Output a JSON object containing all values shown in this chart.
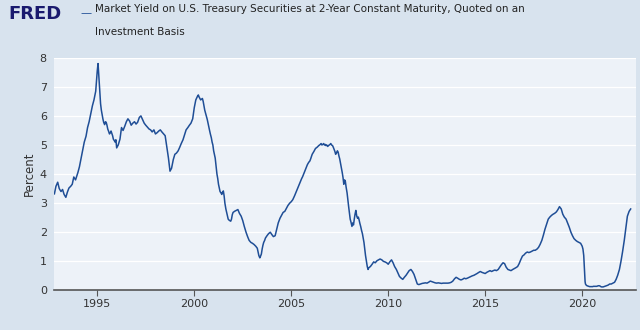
{
  "title_line1": "Market Yield on U.S. Treasury Securities at 2-Year Constant Maturity, Quoted on an",
  "title_line2": "Investment Basis",
  "ylabel": "Percent",
  "xlim_start": 1992.79,
  "xlim_end": 2022.75,
  "ylim": [
    0,
    8
  ],
  "yticks": [
    0,
    1,
    2,
    3,
    4,
    5,
    6,
    7,
    8
  ],
  "xticks": [
    1995,
    2000,
    2005,
    2010,
    2015,
    2020
  ],
  "line_color": "#1f4e96",
  "background_color": "#d8e3ee",
  "plot_bg_color": "#edf2f8",
  "grid_color": "#ffffff",
  "series": [
    [
      1992.79,
      3.32
    ],
    [
      1992.87,
      3.58
    ],
    [
      1992.96,
      3.72
    ],
    [
      1993.04,
      3.5
    ],
    [
      1993.13,
      3.4
    ],
    [
      1993.21,
      3.47
    ],
    [
      1993.29,
      3.3
    ],
    [
      1993.38,
      3.2
    ],
    [
      1993.46,
      3.38
    ],
    [
      1993.54,
      3.52
    ],
    [
      1993.63,
      3.58
    ],
    [
      1993.71,
      3.65
    ],
    [
      1993.79,
      3.9
    ],
    [
      1993.88,
      3.8
    ],
    [
      1994.0,
      4.05
    ],
    [
      1994.08,
      4.25
    ],
    [
      1994.17,
      4.55
    ],
    [
      1994.25,
      4.8
    ],
    [
      1994.33,
      5.1
    ],
    [
      1994.42,
      5.3
    ],
    [
      1994.5,
      5.6
    ],
    [
      1994.58,
      5.8
    ],
    [
      1994.67,
      6.1
    ],
    [
      1994.75,
      6.35
    ],
    [
      1994.83,
      6.55
    ],
    [
      1994.92,
      6.85
    ],
    [
      1995.0,
      7.55
    ],
    [
      1995.04,
      7.8
    ],
    [
      1995.08,
      7.35
    ],
    [
      1995.13,
      6.85
    ],
    [
      1995.17,
      6.42
    ],
    [
      1995.21,
      6.2
    ],
    [
      1995.25,
      6.05
    ],
    [
      1995.29,
      5.9
    ],
    [
      1995.33,
      5.78
    ],
    [
      1995.38,
      5.7
    ],
    [
      1995.42,
      5.8
    ],
    [
      1995.46,
      5.78
    ],
    [
      1995.5,
      5.68
    ],
    [
      1995.54,
      5.55
    ],
    [
      1995.58,
      5.48
    ],
    [
      1995.63,
      5.38
    ],
    [
      1995.67,
      5.42
    ],
    [
      1995.71,
      5.48
    ],
    [
      1995.75,
      5.4
    ],
    [
      1995.79,
      5.32
    ],
    [
      1995.83,
      5.2
    ],
    [
      1995.88,
      5.15
    ],
    [
      1995.92,
      5.1
    ],
    [
      1995.96,
      5.18
    ],
    [
      1996.0,
      4.9
    ],
    [
      1996.08,
      5.0
    ],
    [
      1996.17,
      5.2
    ],
    [
      1996.25,
      5.6
    ],
    [
      1996.33,
      5.5
    ],
    [
      1996.42,
      5.65
    ],
    [
      1996.5,
      5.8
    ],
    [
      1996.58,
      5.9
    ],
    [
      1996.67,
      5.82
    ],
    [
      1996.75,
      5.68
    ],
    [
      1996.83,
      5.75
    ],
    [
      1996.92,
      5.8
    ],
    [
      1997.0,
      5.72
    ],
    [
      1997.08,
      5.78
    ],
    [
      1997.17,
      5.95
    ],
    [
      1997.25,
      6.0
    ],
    [
      1997.33,
      5.88
    ],
    [
      1997.42,
      5.75
    ],
    [
      1997.5,
      5.68
    ],
    [
      1997.58,
      5.62
    ],
    [
      1997.67,
      5.55
    ],
    [
      1997.75,
      5.52
    ],
    [
      1997.83,
      5.45
    ],
    [
      1997.92,
      5.52
    ],
    [
      1998.0,
      5.38
    ],
    [
      1998.08,
      5.42
    ],
    [
      1998.17,
      5.48
    ],
    [
      1998.25,
      5.52
    ],
    [
      1998.33,
      5.45
    ],
    [
      1998.42,
      5.38
    ],
    [
      1998.5,
      5.32
    ],
    [
      1998.58,
      4.95
    ],
    [
      1998.67,
      4.55
    ],
    [
      1998.75,
      4.1
    ],
    [
      1998.83,
      4.2
    ],
    [
      1998.92,
      4.5
    ],
    [
      1999.0,
      4.68
    ],
    [
      1999.08,
      4.72
    ],
    [
      1999.17,
      4.8
    ],
    [
      1999.25,
      4.92
    ],
    [
      1999.33,
      5.05
    ],
    [
      1999.42,
      5.18
    ],
    [
      1999.5,
      5.35
    ],
    [
      1999.58,
      5.52
    ],
    [
      1999.67,
      5.6
    ],
    [
      1999.75,
      5.68
    ],
    [
      1999.83,
      5.75
    ],
    [
      1999.92,
      5.9
    ],
    [
      2000.0,
      6.28
    ],
    [
      2000.04,
      6.42
    ],
    [
      2000.08,
      6.55
    ],
    [
      2000.13,
      6.62
    ],
    [
      2000.17,
      6.68
    ],
    [
      2000.21,
      6.72
    ],
    [
      2000.25,
      6.65
    ],
    [
      2000.29,
      6.6
    ],
    [
      2000.33,
      6.55
    ],
    [
      2000.38,
      6.58
    ],
    [
      2000.42,
      6.6
    ],
    [
      2000.46,
      6.5
    ],
    [
      2000.5,
      6.35
    ],
    [
      2000.54,
      6.2
    ],
    [
      2000.58,
      6.1
    ],
    [
      2000.63,
      5.98
    ],
    [
      2000.67,
      5.88
    ],
    [
      2000.71,
      5.75
    ],
    [
      2000.75,
      5.62
    ],
    [
      2000.79,
      5.5
    ],
    [
      2000.83,
      5.38
    ],
    [
      2000.88,
      5.25
    ],
    [
      2000.92,
      5.1
    ],
    [
      2000.96,
      5.0
    ],
    [
      2001.0,
      4.8
    ],
    [
      2001.08,
      4.55
    ],
    [
      2001.13,
      4.25
    ],
    [
      2001.17,
      4.0
    ],
    [
      2001.21,
      3.85
    ],
    [
      2001.25,
      3.65
    ],
    [
      2001.29,
      3.52
    ],
    [
      2001.33,
      3.4
    ],
    [
      2001.38,
      3.35
    ],
    [
      2001.42,
      3.3
    ],
    [
      2001.46,
      3.38
    ],
    [
      2001.5,
      3.42
    ],
    [
      2001.54,
      3.25
    ],
    [
      2001.58,
      3.0
    ],
    [
      2001.63,
      2.8
    ],
    [
      2001.67,
      2.68
    ],
    [
      2001.71,
      2.55
    ],
    [
      2001.75,
      2.45
    ],
    [
      2001.79,
      2.42
    ],
    [
      2001.83,
      2.4
    ],
    [
      2001.88,
      2.38
    ],
    [
      2001.92,
      2.45
    ],
    [
      2001.96,
      2.6
    ],
    [
      2002.0,
      2.68
    ],
    [
      2002.08,
      2.72
    ],
    [
      2002.17,
      2.75
    ],
    [
      2002.25,
      2.78
    ],
    [
      2002.33,
      2.65
    ],
    [
      2002.42,
      2.55
    ],
    [
      2002.5,
      2.4
    ],
    [
      2002.58,
      2.2
    ],
    [
      2002.67,
      2.0
    ],
    [
      2002.75,
      1.85
    ],
    [
      2002.83,
      1.72
    ],
    [
      2002.92,
      1.65
    ],
    [
      2003.0,
      1.62
    ],
    [
      2003.08,
      1.58
    ],
    [
      2003.17,
      1.52
    ],
    [
      2003.25,
      1.45
    ],
    [
      2003.33,
      1.2
    ],
    [
      2003.38,
      1.12
    ],
    [
      2003.42,
      1.18
    ],
    [
      2003.46,
      1.25
    ],
    [
      2003.5,
      1.42
    ],
    [
      2003.54,
      1.55
    ],
    [
      2003.58,
      1.65
    ],
    [
      2003.63,
      1.72
    ],
    [
      2003.67,
      1.8
    ],
    [
      2003.75,
      1.88
    ],
    [
      2003.83,
      1.95
    ],
    [
      2003.92,
      2.0
    ],
    [
      2004.0,
      1.92
    ],
    [
      2004.08,
      1.85
    ],
    [
      2004.17,
      1.88
    ],
    [
      2004.25,
      2.1
    ],
    [
      2004.33,
      2.32
    ],
    [
      2004.42,
      2.48
    ],
    [
      2004.5,
      2.58
    ],
    [
      2004.58,
      2.68
    ],
    [
      2004.67,
      2.72
    ],
    [
      2004.75,
      2.82
    ],
    [
      2004.83,
      2.92
    ],
    [
      2004.92,
      3.0
    ],
    [
      2005.0,
      3.05
    ],
    [
      2005.08,
      3.12
    ],
    [
      2005.17,
      3.25
    ],
    [
      2005.25,
      3.38
    ],
    [
      2005.33,
      3.52
    ],
    [
      2005.42,
      3.65
    ],
    [
      2005.5,
      3.78
    ],
    [
      2005.54,
      3.85
    ],
    [
      2005.58,
      3.9
    ],
    [
      2005.63,
      3.98
    ],
    [
      2005.67,
      4.05
    ],
    [
      2005.71,
      4.12
    ],
    [
      2005.75,
      4.18
    ],
    [
      2005.79,
      4.25
    ],
    [
      2005.83,
      4.32
    ],
    [
      2005.88,
      4.38
    ],
    [
      2005.92,
      4.42
    ],
    [
      2005.96,
      4.45
    ],
    [
      2006.0,
      4.52
    ],
    [
      2006.08,
      4.68
    ],
    [
      2006.17,
      4.78
    ],
    [
      2006.25,
      4.88
    ],
    [
      2006.33,
      4.92
    ],
    [
      2006.42,
      4.98
    ],
    [
      2006.5,
      5.02
    ],
    [
      2006.54,
      5.05
    ],
    [
      2006.58,
      5.0
    ],
    [
      2006.63,
      5.02
    ],
    [
      2006.67,
      5.05
    ],
    [
      2006.71,
      5.0
    ],
    [
      2006.75,
      5.02
    ],
    [
      2006.79,
      4.98
    ],
    [
      2006.83,
      5.0
    ],
    [
      2006.88,
      4.95
    ],
    [
      2006.92,
      4.98
    ],
    [
      2006.96,
      5.0
    ],
    [
      2007.0,
      5.02
    ],
    [
      2007.04,
      5.05
    ],
    [
      2007.08,
      5.0
    ],
    [
      2007.13,
      4.98
    ],
    [
      2007.17,
      4.92
    ],
    [
      2007.21,
      4.85
    ],
    [
      2007.25,
      4.78
    ],
    [
      2007.29,
      4.68
    ],
    [
      2007.33,
      4.72
    ],
    [
      2007.38,
      4.8
    ],
    [
      2007.42,
      4.75
    ],
    [
      2007.46,
      4.62
    ],
    [
      2007.5,
      4.52
    ],
    [
      2007.54,
      4.38
    ],
    [
      2007.58,
      4.25
    ],
    [
      2007.63,
      4.05
    ],
    [
      2007.67,
      3.88
    ],
    [
      2007.71,
      3.65
    ],
    [
      2007.75,
      3.8
    ],
    [
      2007.79,
      3.75
    ],
    [
      2007.83,
      3.55
    ],
    [
      2007.88,
      3.35
    ],
    [
      2007.92,
      3.1
    ],
    [
      2007.96,
      2.88
    ],
    [
      2008.0,
      2.65
    ],
    [
      2008.04,
      2.45
    ],
    [
      2008.08,
      2.35
    ],
    [
      2008.13,
      2.2
    ],
    [
      2008.17,
      2.32
    ],
    [
      2008.21,
      2.25
    ],
    [
      2008.25,
      2.45
    ],
    [
      2008.29,
      2.62
    ],
    [
      2008.33,
      2.75
    ],
    [
      2008.38,
      2.55
    ],
    [
      2008.42,
      2.48
    ],
    [
      2008.46,
      2.52
    ],
    [
      2008.5,
      2.42
    ],
    [
      2008.54,
      2.3
    ],
    [
      2008.58,
      2.2
    ],
    [
      2008.63,
      2.05
    ],
    [
      2008.67,
      1.95
    ],
    [
      2008.71,
      1.8
    ],
    [
      2008.75,
      1.65
    ],
    [
      2008.79,
      1.42
    ],
    [
      2008.83,
      1.2
    ],
    [
      2008.88,
      1.0
    ],
    [
      2008.92,
      0.82
    ],
    [
      2008.96,
      0.72
    ],
    [
      2009.0,
      0.78
    ],
    [
      2009.08,
      0.82
    ],
    [
      2009.17,
      0.9
    ],
    [
      2009.25,
      0.98
    ],
    [
      2009.33,
      0.95
    ],
    [
      2009.42,
      1.02
    ],
    [
      2009.5,
      1.05
    ],
    [
      2009.58,
      1.08
    ],
    [
      2009.67,
      1.05
    ],
    [
      2009.75,
      1.0
    ],
    [
      2009.83,
      0.98
    ],
    [
      2009.92,
      0.95
    ],
    [
      2010.0,
      0.9
    ],
    [
      2010.08,
      0.98
    ],
    [
      2010.17,
      1.05
    ],
    [
      2010.25,
      0.95
    ],
    [
      2010.33,
      0.82
    ],
    [
      2010.42,
      0.72
    ],
    [
      2010.5,
      0.6
    ],
    [
      2010.58,
      0.48
    ],
    [
      2010.67,
      0.42
    ],
    [
      2010.75,
      0.38
    ],
    [
      2010.83,
      0.45
    ],
    [
      2010.92,
      0.52
    ],
    [
      2011.0,
      0.6
    ],
    [
      2011.08,
      0.68
    ],
    [
      2011.17,
      0.72
    ],
    [
      2011.25,
      0.65
    ],
    [
      2011.33,
      0.55
    ],
    [
      2011.42,
      0.38
    ],
    [
      2011.5,
      0.22
    ],
    [
      2011.58,
      0.2
    ],
    [
      2011.67,
      0.22
    ],
    [
      2011.75,
      0.24
    ],
    [
      2011.83,
      0.25
    ],
    [
      2011.92,
      0.26
    ],
    [
      2012.0,
      0.25
    ],
    [
      2012.08,
      0.28
    ],
    [
      2012.17,
      0.32
    ],
    [
      2012.25,
      0.3
    ],
    [
      2012.33,
      0.28
    ],
    [
      2012.42,
      0.26
    ],
    [
      2012.5,
      0.25
    ],
    [
      2012.58,
      0.26
    ],
    [
      2012.67,
      0.25
    ],
    [
      2012.75,
      0.24
    ],
    [
      2012.83,
      0.25
    ],
    [
      2012.92,
      0.25
    ],
    [
      2013.0,
      0.25
    ],
    [
      2013.08,
      0.25
    ],
    [
      2013.17,
      0.26
    ],
    [
      2013.25,
      0.28
    ],
    [
      2013.33,
      0.32
    ],
    [
      2013.42,
      0.4
    ],
    [
      2013.5,
      0.45
    ],
    [
      2013.58,
      0.42
    ],
    [
      2013.67,
      0.38
    ],
    [
      2013.75,
      0.36
    ],
    [
      2013.83,
      0.38
    ],
    [
      2013.92,
      0.42
    ],
    [
      2014.0,
      0.4
    ],
    [
      2014.08,
      0.42
    ],
    [
      2014.17,
      0.45
    ],
    [
      2014.25,
      0.48
    ],
    [
      2014.33,
      0.5
    ],
    [
      2014.42,
      0.52
    ],
    [
      2014.5,
      0.55
    ],
    [
      2014.58,
      0.58
    ],
    [
      2014.67,
      0.62
    ],
    [
      2014.75,
      0.65
    ],
    [
      2014.83,
      0.62
    ],
    [
      2014.92,
      0.6
    ],
    [
      2015.0,
      0.58
    ],
    [
      2015.08,
      0.62
    ],
    [
      2015.17,
      0.65
    ],
    [
      2015.25,
      0.68
    ],
    [
      2015.33,
      0.65
    ],
    [
      2015.42,
      0.68
    ],
    [
      2015.5,
      0.7
    ],
    [
      2015.58,
      0.68
    ],
    [
      2015.67,
      0.72
    ],
    [
      2015.75,
      0.8
    ],
    [
      2015.83,
      0.88
    ],
    [
      2015.92,
      0.95
    ],
    [
      2016.0,
      0.92
    ],
    [
      2016.08,
      0.8
    ],
    [
      2016.17,
      0.72
    ],
    [
      2016.25,
      0.7
    ],
    [
      2016.33,
      0.68
    ],
    [
      2016.42,
      0.72
    ],
    [
      2016.5,
      0.75
    ],
    [
      2016.58,
      0.78
    ],
    [
      2016.67,
      0.82
    ],
    [
      2016.75,
      0.92
    ],
    [
      2016.83,
      1.05
    ],
    [
      2016.92,
      1.18
    ],
    [
      2017.0,
      1.22
    ],
    [
      2017.08,
      1.28
    ],
    [
      2017.17,
      1.32
    ],
    [
      2017.25,
      1.3
    ],
    [
      2017.33,
      1.32
    ],
    [
      2017.42,
      1.35
    ],
    [
      2017.5,
      1.38
    ],
    [
      2017.58,
      1.38
    ],
    [
      2017.67,
      1.42
    ],
    [
      2017.75,
      1.48
    ],
    [
      2017.83,
      1.58
    ],
    [
      2017.92,
      1.72
    ],
    [
      2018.0,
      1.9
    ],
    [
      2018.08,
      2.1
    ],
    [
      2018.17,
      2.28
    ],
    [
      2018.25,
      2.45
    ],
    [
      2018.33,
      2.52
    ],
    [
      2018.42,
      2.58
    ],
    [
      2018.5,
      2.62
    ],
    [
      2018.58,
      2.65
    ],
    [
      2018.67,
      2.7
    ],
    [
      2018.75,
      2.78
    ],
    [
      2018.83,
      2.88
    ],
    [
      2018.92,
      2.8
    ],
    [
      2019.0,
      2.62
    ],
    [
      2019.08,
      2.52
    ],
    [
      2019.17,
      2.45
    ],
    [
      2019.25,
      2.32
    ],
    [
      2019.33,
      2.18
    ],
    [
      2019.42,
      2.0
    ],
    [
      2019.5,
      1.88
    ],
    [
      2019.58,
      1.78
    ],
    [
      2019.67,
      1.72
    ],
    [
      2019.75,
      1.68
    ],
    [
      2019.83,
      1.65
    ],
    [
      2019.92,
      1.62
    ],
    [
      2020.0,
      1.52
    ],
    [
      2020.04,
      1.42
    ],
    [
      2020.08,
      1.2
    ],
    [
      2020.12,
      0.72
    ],
    [
      2020.15,
      0.3
    ],
    [
      2020.17,
      0.22
    ],
    [
      2020.21,
      0.18
    ],
    [
      2020.25,
      0.16
    ],
    [
      2020.29,
      0.15
    ],
    [
      2020.33,
      0.14
    ],
    [
      2020.38,
      0.13
    ],
    [
      2020.42,
      0.13
    ],
    [
      2020.46,
      0.13
    ],
    [
      2020.5,
      0.13
    ],
    [
      2020.54,
      0.13
    ],
    [
      2020.58,
      0.14
    ],
    [
      2020.63,
      0.14
    ],
    [
      2020.67,
      0.14
    ],
    [
      2020.71,
      0.14
    ],
    [
      2020.75,
      0.14
    ],
    [
      2020.79,
      0.15
    ],
    [
      2020.83,
      0.16
    ],
    [
      2020.88,
      0.16
    ],
    [
      2020.92,
      0.15
    ],
    [
      2020.96,
      0.13
    ],
    [
      2021.0,
      0.12
    ],
    [
      2021.08,
      0.12
    ],
    [
      2021.17,
      0.14
    ],
    [
      2021.25,
      0.16
    ],
    [
      2021.33,
      0.18
    ],
    [
      2021.42,
      0.22
    ],
    [
      2021.5,
      0.22
    ],
    [
      2021.58,
      0.25
    ],
    [
      2021.67,
      0.28
    ],
    [
      2021.75,
      0.38
    ],
    [
      2021.83,
      0.52
    ],
    [
      2021.92,
      0.72
    ],
    [
      2022.0,
      1.0
    ],
    [
      2022.08,
      1.32
    ],
    [
      2022.17,
      1.72
    ],
    [
      2022.25,
      2.15
    ],
    [
      2022.33,
      2.55
    ],
    [
      2022.42,
      2.72
    ],
    [
      2022.5,
      2.8
    ]
  ]
}
